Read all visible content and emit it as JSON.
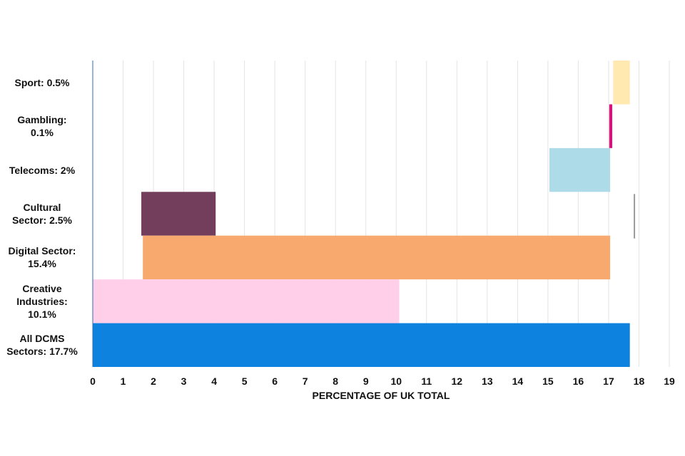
{
  "chart_data": {
    "type": "bar",
    "orientation": "horizontal",
    "xlabel": "PERCENTAGE OF UK TOTAL",
    "xlim": [
      0,
      19
    ],
    "xticks": [
      0,
      1,
      2,
      3,
      4,
      5,
      6,
      7,
      8,
      9,
      10,
      11,
      12,
      13,
      14,
      15,
      16,
      17,
      18,
      19
    ],
    "grid": "vertical",
    "categories": [
      "Sport: 0.5%",
      "Gambling:\n0.1%",
      "Telecoms: 2%",
      "Cultural\nSector: 2.5%",
      "Digital Sector:\n15.4%",
      "Creative\nIndustries:\n10.1%",
      "All DCMS\nSectors: 17.7%"
    ],
    "bars": [
      {
        "category": "Sport: 0.5%",
        "start": 17.15,
        "end": 17.7,
        "color": "#FFE9B0"
      },
      {
        "category": "Gambling: 0.1%",
        "start": 17.02,
        "end": 17.12,
        "color": "#D4147A"
      },
      {
        "category": "Telecoms: 2%",
        "start": 15.05,
        "end": 17.05,
        "color": "#ADDCE8"
      },
      {
        "category": "Cultural Sector: 2.5%",
        "start": 1.6,
        "end": 4.05,
        "color": "#733E5C"
      },
      {
        "category": "Digital Sector: 15.4%",
        "start": 1.65,
        "end": 17.05,
        "color": "#F8AA6E"
      },
      {
        "category": "Creative Industries: 10.1%",
        "start": 0,
        "end": 10.1,
        "color": "#FFCFEA"
      },
      {
        "category": "All DCMS Sectors: 17.7%",
        "start": 0,
        "end": 17.7,
        "color": "#0D82DF"
      }
    ],
    "reference_line": {
      "x": 17.85,
      "color": "#999999"
    }
  }
}
